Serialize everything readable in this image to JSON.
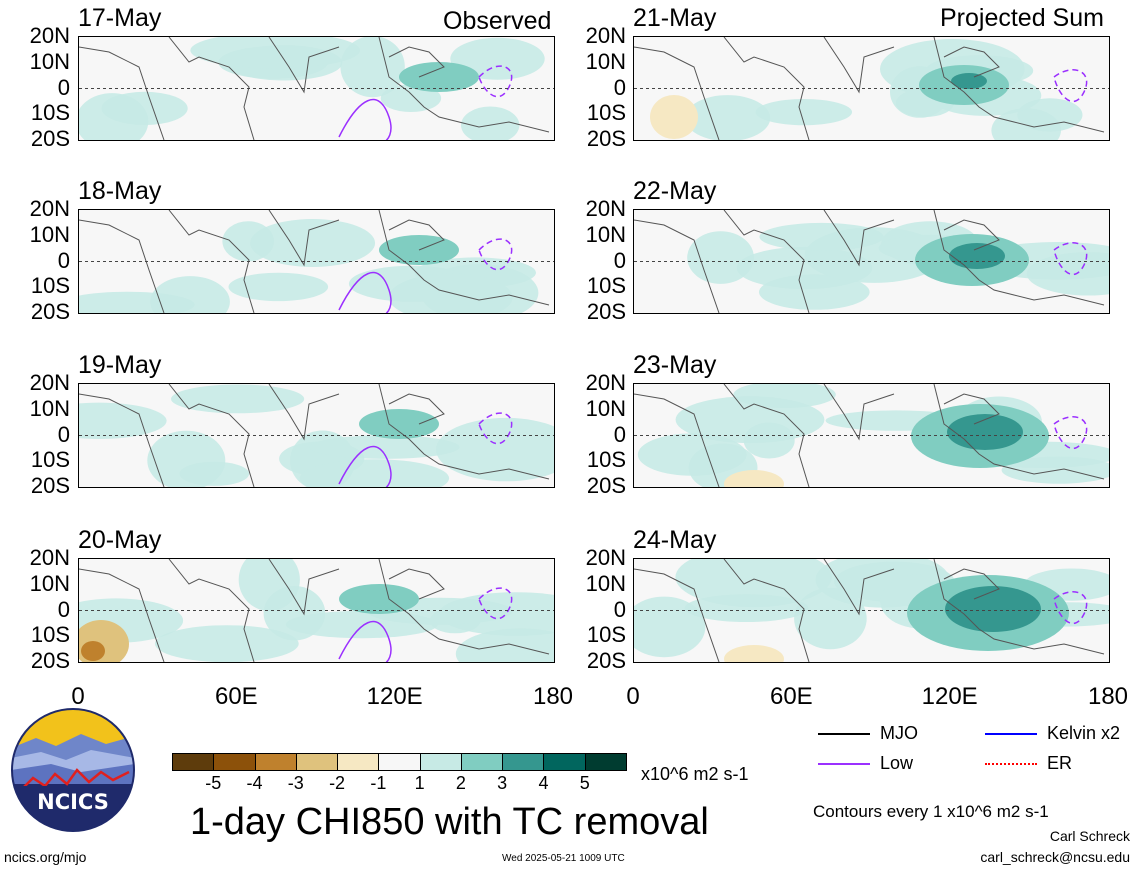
{
  "column_headers": {
    "left": "Observed",
    "right": "Projected Sum"
  },
  "panels": {
    "left": [
      {
        "date": "17-May"
      },
      {
        "date": "18-May"
      },
      {
        "date": "19-May"
      },
      {
        "date": "20-May"
      }
    ],
    "right": [
      {
        "date": "21-May"
      },
      {
        "date": "22-May"
      },
      {
        "date": "23-May"
      },
      {
        "date": "24-May"
      }
    ]
  },
  "lat_labels": [
    "20N",
    "10N",
    "0",
    "10S",
    "20S"
  ],
  "lon_labels": [
    "0",
    "60E",
    "120E",
    "180"
  ],
  "colorbar": {
    "colors": [
      "#5e3c0c",
      "#8c510a",
      "#bf812d",
      "#dfc27d",
      "#f6e8c3",
      "#f7f7f7",
      "#c7eae5",
      "#80cdc1",
      "#35978f",
      "#01665e",
      "#003c30"
    ],
    "ticks": [
      "-5",
      "-4",
      "-3",
      "-2",
      "-1",
      "1",
      "2",
      "3",
      "4",
      "5"
    ],
    "units": "x10^6 m2 s-1"
  },
  "title": "1-day CHI850 with TC removal",
  "contour_legend": [
    {
      "label": "MJO",
      "color": "#000000",
      "style": "solid"
    },
    {
      "label": "Kelvin x2",
      "color": "#0000ff",
      "style": "solid"
    },
    {
      "label": "Low",
      "color": "#9b30ff",
      "style": "solid"
    },
    {
      "label": "ER",
      "color": "#ff0000",
      "style": "dotted"
    }
  ],
  "contour_note": "Contours every 1 x10^6 m2 s-1",
  "credit_name": "Carl Schreck",
  "credit_email": "carl_schreck@ncsu.edu",
  "site": "ncics.org/mjo",
  "timestamp": "Wed 2025-05-21 1009 UTC",
  "logo_text": "NCICS",
  "chart_data": {
    "type": "heatmap",
    "title": "1-day CHI850 with TC removal",
    "panels_left": [
      "17-May",
      "18-May",
      "19-May",
      "20-May"
    ],
    "panels_right": [
      "21-May",
      "22-May",
      "23-May",
      "24-May"
    ],
    "x_range": [
      0,
      180
    ],
    "x_ticks": [
      "0",
      "60E",
      "120E",
      "180"
    ],
    "y_range": [
      -20,
      20
    ],
    "y_ticks": [
      "20N",
      "10N",
      "0",
      "10S",
      "20S"
    ],
    "color_levels": [
      -5,
      -4,
      -3,
      -2,
      -1,
      1,
      2,
      3,
      4,
      5
    ],
    "units": "x10^6 m2 s-1",
    "legend": [
      "MJO",
      "Kelvin x2",
      "Low",
      "ER"
    ]
  }
}
